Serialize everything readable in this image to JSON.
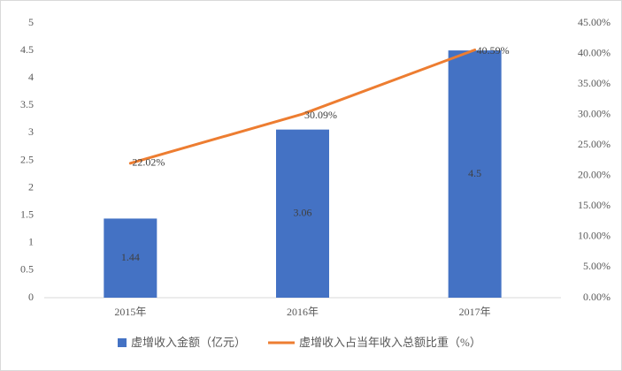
{
  "chart_data": {
    "type": "bar-line",
    "categories": [
      "2015年",
      "2016年",
      "2017年"
    ],
    "series": [
      {
        "name": "虚增收入金额（亿元）",
        "type": "bar",
        "color": "#4472c4",
        "values": [
          1.44,
          3.06,
          4.5
        ]
      },
      {
        "name": "虚增收入占当年收入总额比重（%）",
        "type": "line",
        "axis": "y2",
        "color": "#ed7d31",
        "values": [
          22.02,
          30.09,
          40.59
        ],
        "value_labels": [
          "22.02%",
          "30.09%",
          "40.59%"
        ]
      }
    ],
    "ylim": [
      0,
      5
    ],
    "yticks": [
      0,
      0.5,
      1,
      1.5,
      2,
      2.5,
      3,
      3.5,
      4,
      4.5,
      5
    ],
    "y2lim": [
      0,
      45
    ],
    "y2ticks": [
      {
        "value": 0,
        "label": "0.00%"
      },
      {
        "value": 5,
        "label": "5.00%"
      },
      {
        "value": 10,
        "label": "10.00%"
      },
      {
        "value": 15,
        "label": "15.00%"
      },
      {
        "value": 20,
        "label": "20.00%"
      },
      {
        "value": 25,
        "label": "25.00%"
      },
      {
        "value": 30,
        "label": "30.00%"
      },
      {
        "value": 35,
        "label": "35.00%"
      },
      {
        "value": 40,
        "label": "40.00%"
      },
      {
        "value": 45,
        "label": "45.00%"
      }
    ],
    "grid": false,
    "legend": "bottom"
  }
}
